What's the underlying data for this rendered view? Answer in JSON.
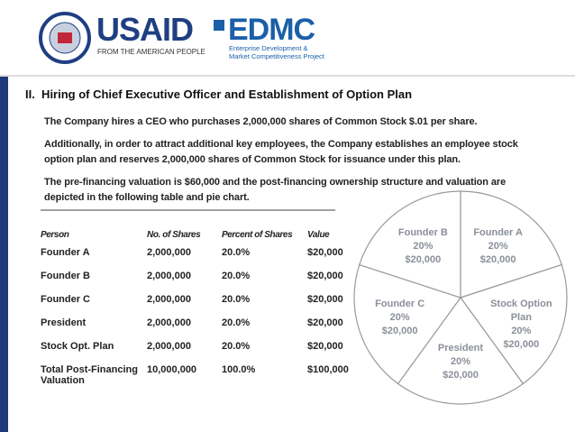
{
  "header": {
    "usaid": "USAID",
    "usaid_tagline": "FROM THE AMERICAN PEOPLE",
    "edmc": "EDMC",
    "edmc_line1": "Enterprise Development &",
    "edmc_line2": "Market Competitiveness Project"
  },
  "title": "II.  Hiring of Chief Executive Officer and Establishment of Option Plan",
  "paragraphs": [
    "The Company hires a CEO who purchases 2,000,000 shares of Common Stock $.01 per share.",
    "Additionally, in order to attract additional key employees, the Company establishes an employee stock option plan and reserves 2,000,000 shares of Common Stock for issuance under this plan.",
    "The pre-financing valuation is $60,000 and the post-financing ownership structure and valuation are depicted in the following table and pie chart."
  ],
  "table": {
    "columns": [
      "Person",
      "No. of Shares",
      "Percent of Shares",
      "Value"
    ],
    "rows": [
      [
        "Founder A",
        "2,000,000",
        "20.0%",
        "$20,000"
      ],
      [
        "Founder B",
        "2,000,000",
        "20.0%",
        "$20,000"
      ],
      [
        "Founder C",
        "2,000,000",
        "20.0%",
        "$20,000"
      ],
      [
        "President",
        "2,000,000",
        "20.0%",
        "$20,000"
      ],
      [
        "Stock Opt. Plan",
        "2,000,000",
        "20.0%",
        "$20,000"
      ],
      [
        "Total Post-Financing Valuation",
        "10,000,000",
        "100.0%",
        "$100,000"
      ]
    ]
  },
  "chart_data": {
    "type": "pie",
    "categories": [
      "Founder A",
      "Stock Option Plan",
      "President",
      "Founder C",
      "Founder B"
    ],
    "values": [
      20,
      20,
      20,
      20,
      20
    ],
    "value_labels": [
      "20%",
      "20%",
      "20%",
      "20%",
      "20%"
    ],
    "amounts": [
      20000,
      20000,
      20000,
      20000,
      20000
    ],
    "amount_labels": [
      "$20,000",
      "$20,000",
      "$20,000",
      "$20,000",
      "$20,000"
    ],
    "color": "#ffffff"
  }
}
